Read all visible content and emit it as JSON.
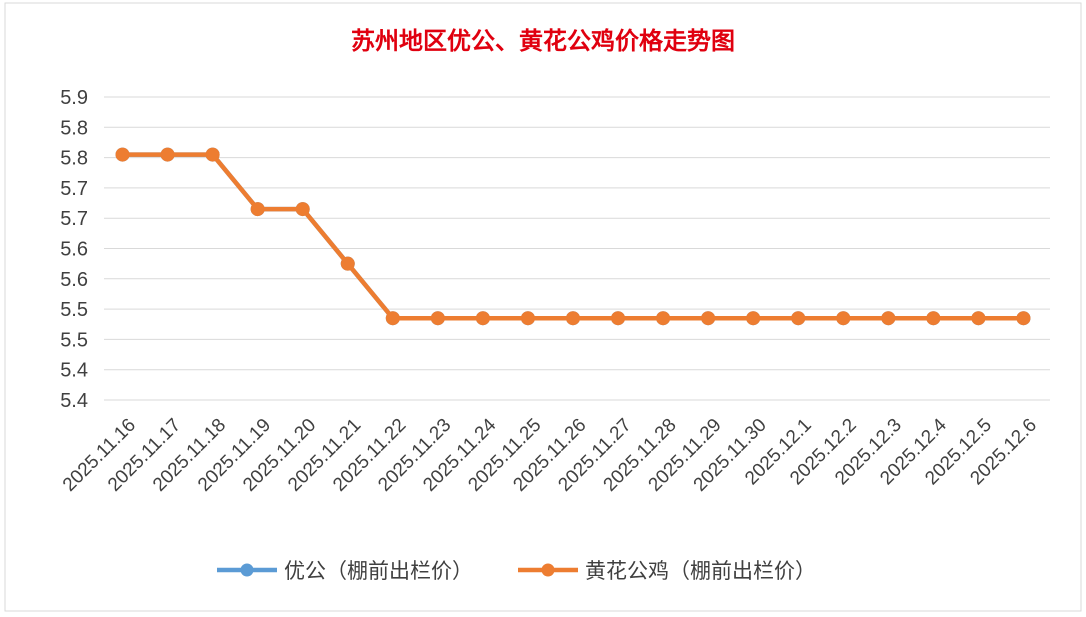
{
  "chart_data": {
    "type": "line",
    "title": "苏州地区优公、黄花公鸡价格走势图",
    "xlabel": "",
    "ylabel": "",
    "categories": [
      "2025.11.16",
      "2025.11.17",
      "2025.11.18",
      "2025.11.19",
      "2025.11.20",
      "2025.11.21",
      "2025.11.22",
      "2025.11.23",
      "2025.11.24",
      "2025.11.25",
      "2025.11.26",
      "2025.11.27",
      "2025.11.28",
      "2025.11.29",
      "2025.11.30",
      "2025.12.1",
      "2025.12.2",
      "2025.12.3",
      "2025.12.4",
      "2025.12.5",
      "2025.12.6"
    ],
    "y_tick_labels": [
      "5.9",
      "5.8",
      "5.8",
      "5.7",
      "5.7",
      "5.6",
      "5.6",
      "5.5",
      "5.5",
      "5.4",
      "5.4"
    ],
    "ylim": [
      5.35,
      5.85
    ],
    "grid": true,
    "legend_position": "bottom",
    "series": [
      {
        "name": "优公（棚前出栏价）",
        "color": "#5b9bd5",
        "values": [
          5.8,
          5.8,
          5.8,
          5.7,
          5.7,
          5.6,
          5.5,
          5.5,
          5.5,
          5.5,
          5.5,
          5.5,
          5.5,
          5.5,
          5.5,
          5.5,
          5.5,
          5.5,
          5.5,
          5.5,
          5.5
        ]
      },
      {
        "name": "黄花公鸡（棚前出栏价）",
        "color": "#ed7d31",
        "values": [
          5.8,
          5.8,
          5.8,
          5.7,
          5.7,
          5.6,
          5.5,
          5.5,
          5.5,
          5.5,
          5.5,
          5.5,
          5.5,
          5.5,
          5.5,
          5.5,
          5.5,
          5.5,
          5.5,
          5.5,
          5.5
        ]
      }
    ]
  }
}
